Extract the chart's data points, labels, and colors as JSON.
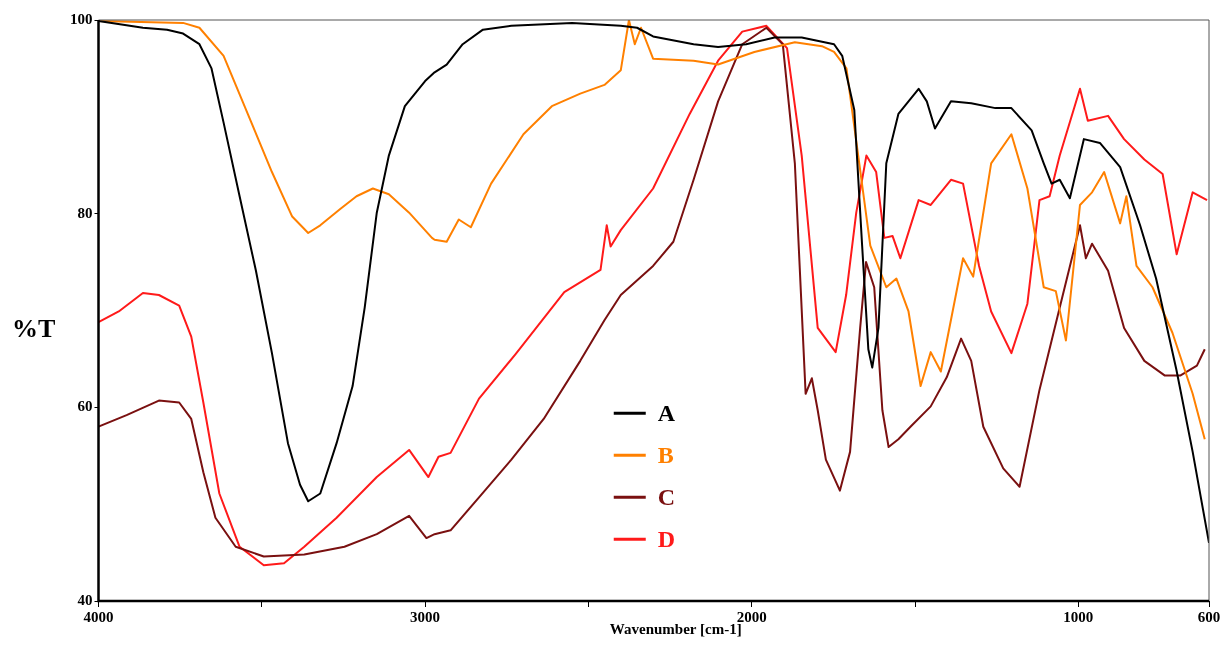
{
  "chart_data": {
    "type": "line",
    "xlabel": "Wavenumber [cm-1]",
    "ylabel": "%T",
    "xlim": [
      4000,
      600
    ],
    "xticks": [
      4000,
      {
        "value": 3500,
        "label": null
      },
      3000,
      {
        "value": 2500,
        "label": null
      },
      2000,
      {
        "value": 1500,
        "label": null
      },
      1000,
      600
    ],
    "ylim": [
      40,
      100
    ],
    "yticks": [
      40,
      60,
      80,
      100
    ],
    "grid": false,
    "legend": "bottom",
    "marker": "none",
    "line_style": "solid",
    "series": [
      {
        "name": "A",
        "color": "#000000",
        "x": [
          4000,
          3864,
          3790,
          3741,
          3691,
          3654,
          3617,
          3568,
          3518,
          3469,
          3420,
          3383,
          3358,
          3321,
          3271,
          3222,
          3185,
          3148,
          3111,
          3062,
          3000,
          2971,
          2934,
          2885,
          2823,
          2736,
          2550,
          2401,
          2351,
          2302,
          2178,
          2103,
          2017,
          1930,
          1847,
          1748,
          1723,
          1686,
          1662,
          1643,
          1631,
          1612,
          1588,
          1551,
          1489,
          1464,
          1439,
          1390,
          1328,
          1254,
          1205,
          1143,
          1106,
          1082,
          1057,
          1026,
          983,
          934,
          872,
          811,
          762,
          700,
          650,
          600
        ],
        "values": [
          99.9,
          99.2,
          99,
          98.6,
          97.5,
          95,
          89.4,
          81.8,
          74.1,
          65.6,
          56.3,
          52,
          50.3,
          51.1,
          56.3,
          62.2,
          70.3,
          80.1,
          86,
          91.1,
          93.7,
          94.6,
          95.4,
          97.5,
          99,
          99.4,
          99.7,
          99.4,
          99.2,
          98.3,
          97.5,
          97.2,
          97.5,
          98.2,
          98.2,
          97.5,
          96.3,
          90.7,
          76.7,
          66,
          64.1,
          68.2,
          85.2,
          90.3,
          92.9,
          91.6,
          88.8,
          91.6,
          91.4,
          90.9,
          90.9,
          88.6,
          85.2,
          83.1,
          83.5,
          81.6,
          87.7,
          87.3,
          84.8,
          78.8,
          73.3,
          63.9,
          55.4,
          46
        ]
      },
      {
        "name": "B",
        "color": "#ff8000",
        "x": [
          4000,
          3741,
          3691,
          3617,
          3543,
          3469,
          3407,
          3358,
          3321,
          3259,
          3210,
          3160,
          3111,
          3049,
          2979,
          2971,
          2934,
          2897,
          2860,
          2798,
          2699,
          2612,
          2525,
          2451,
          2401,
          2376,
          2358,
          2339,
          2302,
          2178,
          2103,
          1992,
          1868,
          1785,
          1748,
          1710,
          1674,
          1637,
          1588,
          1557,
          1520,
          1483,
          1452,
          1421,
          1353,
          1322,
          1267,
          1205,
          1156,
          1106,
          1069,
          1038,
          995,
          958,
          921,
          872,
          853,
          822,
          773,
          712,
          650,
          613
        ],
        "values": [
          99.9,
          99.7,
          99.2,
          96.3,
          90.3,
          84.3,
          79.7,
          78,
          78.8,
          80.5,
          81.8,
          82.6,
          82,
          80.1,
          77.5,
          77.3,
          77.1,
          79.4,
          78.6,
          83.1,
          88.2,
          91.1,
          92.4,
          93.3,
          94.8,
          100,
          97.5,
          99.2,
          96,
          95.8,
          95.4,
          96.7,
          97.7,
          97.3,
          96.7,
          95,
          86,
          76.7,
          72.4,
          73.3,
          69.9,
          62.2,
          65.7,
          63.7,
          75.4,
          73.5,
          85.2,
          88.2,
          82.6,
          72.4,
          72,
          66.9,
          80.9,
          82.2,
          84.3,
          79,
          81.8,
          74.6,
          72.4,
          67.7,
          61.4,
          56.7
        ]
      },
      {
        "name": "C",
        "color": "#7a1010",
        "x": [
          4000,
          3914,
          3815,
          3753,
          3716,
          3679,
          3642,
          3580,
          3494,
          3370,
          3247,
          3148,
          3049,
          2996,
          2971,
          2922,
          2835,
          2736,
          2637,
          2525,
          2451,
          2401,
          2302,
          2240,
          2178,
          2103,
          2029,
          1955,
          1905,
          1868,
          1835,
          1816,
          1798,
          1773,
          1730,
          1699,
          1668,
          1650,
          1625,
          1600,
          1581,
          1551,
          1514,
          1452,
          1403,
          1359,
          1328,
          1291,
          1230,
          1180,
          1119,
          1057,
          995,
          977,
          958,
          909,
          860,
          798,
          736,
          687,
          637,
          613
        ],
        "values": [
          58,
          59.2,
          60.7,
          60.5,
          58.8,
          53.3,
          48.6,
          45.6,
          44.6,
          44.8,
          45.6,
          46.9,
          48.8,
          46.5,
          46.9,
          47.3,
          50.7,
          54.6,
          58.8,
          64.8,
          69,
          71.6,
          74.6,
          77.1,
          83.5,
          91.6,
          97.5,
          99.2,
          97.5,
          85.2,
          61.4,
          63,
          59.7,
          54.6,
          51.4,
          55.4,
          68.2,
          75,
          72.4,
          59.7,
          55.9,
          56.7,
          58,
          60.1,
          63.1,
          67.1,
          64.8,
          58,
          53.7,
          51.8,
          61.8,
          70.3,
          78.8,
          75.4,
          76.9,
          74.1,
          68.2,
          64.8,
          63.3,
          63.3,
          64.3,
          66
        ]
      },
      {
        "name": "D",
        "color": "#ff1a1a",
        "x": [
          4000,
          3938,
          3864,
          3815,
          3753,
          3716,
          3679,
          3630,
          3568,
          3494,
          3432,
          3370,
          3271,
          3148,
          3049,
          2990,
          2959,
          2922,
          2835,
          2723,
          2574,
          2463,
          2444,
          2432,
          2401,
          2302,
          2190,
          2103,
          2029,
          1955,
          1892,
          1847,
          1798,
          1743,
          1711,
          1680,
          1649,
          1619,
          1594,
          1569,
          1545,
          1489,
          1452,
          1390,
          1353,
          1304,
          1267,
          1205,
          1156,
          1119,
          1088,
          1057,
          995,
          971,
          909,
          860,
          798,
          742,
          699,
          650,
          606
        ],
        "values": [
          68.8,
          69.9,
          71.8,
          71.6,
          70.5,
          67.3,
          60.5,
          51.1,
          45.6,
          43.7,
          43.9,
          45.6,
          48.6,
          52.8,
          55.6,
          52.8,
          54.9,
          55.3,
          60.9,
          65.5,
          71.9,
          74.2,
          78.8,
          76.6,
          78.3,
          82.6,
          90.3,
          95.8,
          98.8,
          99.4,
          97.1,
          86,
          68.2,
          65.7,
          71.6,
          80.1,
          86,
          84.3,
          77.5,
          77.7,
          75.4,
          81.4,
          80.9,
          83.5,
          83.1,
          74.6,
          69.9,
          65.6,
          70.7,
          81.4,
          81.8,
          86,
          92.9,
          89.6,
          90.1,
          87.7,
          85.6,
          84.1,
          75.8,
          82.2,
          81.4
        ]
      }
    ]
  }
}
